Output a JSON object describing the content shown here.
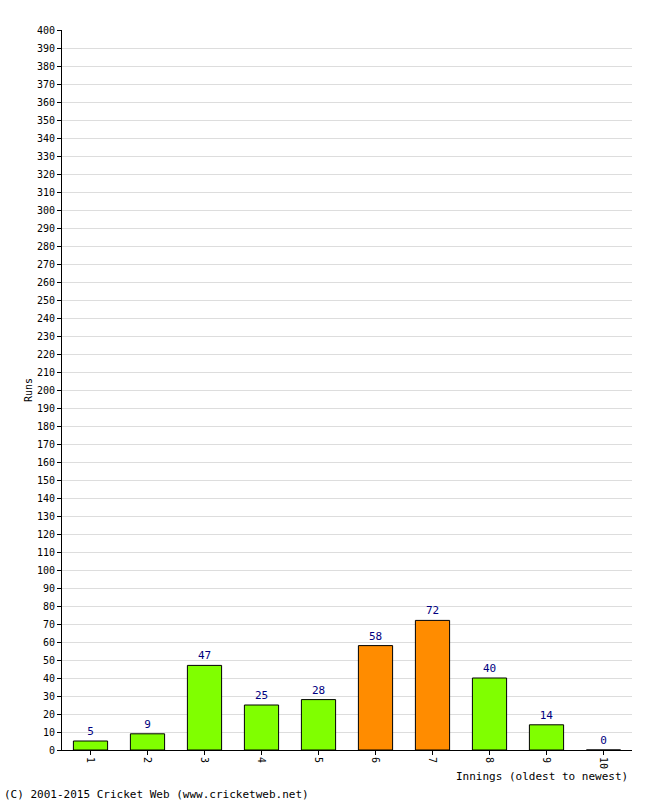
{
  "chart_data": {
    "type": "bar",
    "categories": [
      "1",
      "2",
      "3",
      "4",
      "5",
      "6",
      "7",
      "8",
      "9",
      "10"
    ],
    "values": [
      5,
      9,
      47,
      25,
      28,
      58,
      72,
      40,
      14,
      0
    ],
    "colors": [
      "#80ff00",
      "#80ff00",
      "#80ff00",
      "#80ff00",
      "#80ff00",
      "#ff8c00",
      "#ff8c00",
      "#80ff00",
      "#80ff00",
      "#80ff00"
    ],
    "x_label": "Innings (oldest to newest)",
    "y_label": "Runs",
    "annotations": [
      "(C) 2001-2015 Cricket Web (www.cricketweb.net)"
    ],
    "ylim": [
      0,
      400
    ],
    "yticks": [
      0,
      10,
      20,
      30,
      40,
      50,
      60,
      70,
      80,
      90,
      100,
      110,
      120,
      130,
      140,
      150,
      160,
      170,
      180,
      190,
      200,
      210,
      220,
      230,
      240,
      250,
      260,
      270,
      280,
      290,
      300,
      310,
      320,
      330,
      340,
      350,
      360,
      370,
      380,
      390,
      400
    ],
    "grid": true,
    "data_labels": true
  }
}
